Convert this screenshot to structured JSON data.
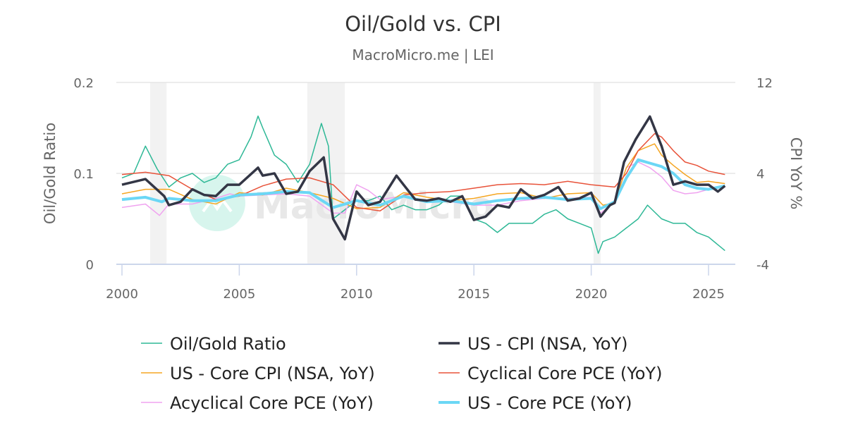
{
  "chart_data": {
    "type": "line",
    "title": "Oil/Gold vs. CPI",
    "subtitle": "MacroMicro.me | LEI",
    "watermark": "MacroMicro",
    "ylabel_left": "Oil/Gold Ratio",
    "ylabel_right": "CPI YoY %",
    "xlim": [
      2000,
      2026
    ],
    "ylim_left": [
      0,
      0.2
    ],
    "ylim_right": [
      -4,
      12
    ],
    "x_ticks": [
      "2000",
      "2005",
      "2010",
      "2015",
      "2020",
      "2025"
    ],
    "y_ticks_left": [
      "0",
      "0.1",
      "0.2"
    ],
    "y_ticks_right": [
      "-4",
      "4",
      "12"
    ],
    "grid": true,
    "legend_position": "bottom",
    "recession_shading": [
      [
        2001.2,
        2001.9
      ],
      [
        2007.9,
        2009.5
      ],
      [
        2020.1,
        2020.4
      ]
    ],
    "series": [
      {
        "name": "Oil/Gold Ratio",
        "axis": "left",
        "color": "#2eb896",
        "width": 1.5,
        "x": [
          2000,
          2000.5,
          2001,
          2001.5,
          2002,
          2002.5,
          2003,
          2003.5,
          2004,
          2004.5,
          2005,
          2005.5,
          2005.8,
          2006,
          2006.5,
          2007,
          2007.5,
          2008,
          2008.5,
          2008.8,
          2009,
          2009.5,
          2010,
          2010.5,
          2011,
          2011.5,
          2012,
          2012.5,
          2013,
          2013.5,
          2014,
          2014.5,
          2015,
          2015.5,
          2016,
          2016.5,
          2017,
          2017.5,
          2018,
          2018.5,
          2019,
          2019.5,
          2020,
          2020.3,
          2020.5,
          2021,
          2021.5,
          2022,
          2022.4,
          2023,
          2023.5,
          2024,
          2024.5,
          2025,
          2025.7
        ],
        "y": [
          0.095,
          0.1,
          0.13,
          0.105,
          0.085,
          0.095,
          0.1,
          0.09,
          0.095,
          0.11,
          0.115,
          0.14,
          0.163,
          0.15,
          0.12,
          0.11,
          0.09,
          0.11,
          0.155,
          0.13,
          0.05,
          0.06,
          0.07,
          0.07,
          0.075,
          0.06,
          0.065,
          0.06,
          0.06,
          0.065,
          0.075,
          0.075,
          0.05,
          0.045,
          0.035,
          0.045,
          0.045,
          0.045,
          0.055,
          0.06,
          0.05,
          0.045,
          0.04,
          0.012,
          0.025,
          0.03,
          0.04,
          0.05,
          0.065,
          0.05,
          0.045,
          0.045,
          0.035,
          0.03,
          0.015
        ]
      },
      {
        "name": "US - CPI (NSA, YoY)",
        "axis": "right",
        "color": "#333645",
        "width": 3.5,
        "x": [
          2000,
          2001,
          2001.8,
          2002,
          2002.5,
          2003,
          2003.5,
          2004,
          2004.5,
          2005,
          2005.8,
          2006,
          2006.5,
          2007,
          2007.5,
          2008,
          2008.6,
          2009,
          2009.5,
          2010,
          2010.5,
          2011,
          2011.7,
          2012,
          2012.5,
          2013,
          2013.5,
          2014,
          2014.5,
          2015,
          2015.5,
          2016,
          2016.5,
          2017,
          2017.5,
          2018,
          2018.6,
          2019,
          2019.5,
          2020,
          2020.4,
          2020.8,
          2021,
          2021.4,
          2021.9,
          2022.5,
          2023,
          2023.5,
          2024,
          2024.5,
          2025,
          2025.4,
          2025.7
        ],
        "y": [
          3.0,
          3.5,
          2.0,
          1.2,
          1.5,
          2.6,
          2.1,
          2.0,
          3.0,
          3.0,
          4.5,
          3.8,
          4.0,
          2.2,
          2.4,
          4.2,
          5.4,
          0.0,
          -1.8,
          2.4,
          1.2,
          1.5,
          3.8,
          3.0,
          1.7,
          1.6,
          1.8,
          1.5,
          2.0,
          -0.1,
          0.2,
          1.2,
          1.0,
          2.6,
          1.8,
          2.1,
          2.8,
          1.6,
          1.8,
          2.3,
          0.2,
          1.2,
          1.4,
          5.0,
          7.0,
          9.0,
          6.4,
          3.0,
          3.3,
          3.0,
          3.0,
          2.4,
          2.9
        ]
      },
      {
        "name": "US - Core CPI (NSA, YoY)",
        "axis": "right",
        "color": "#f5a623",
        "width": 1.5,
        "x": [
          2000,
          2001,
          2002,
          2003,
          2004,
          2005,
          2006,
          2007,
          2008,
          2009,
          2010,
          2011,
          2012,
          2013,
          2014,
          2015,
          2016,
          2017,
          2018,
          2019,
          2020,
          2020.5,
          2021,
          2021.5,
          2022,
          2022.7,
          2023,
          2023.5,
          2024,
          2024.5,
          2025,
          2025.7
        ],
        "y": [
          2.2,
          2.6,
          2.6,
          1.7,
          1.3,
          2.3,
          2.1,
          2.7,
          2.3,
          1.8,
          0.9,
          1.0,
          2.3,
          1.9,
          1.6,
          1.8,
          2.2,
          2.3,
          1.8,
          2.2,
          2.3,
          1.2,
          1.4,
          4.5,
          6.0,
          6.6,
          5.6,
          4.7,
          3.9,
          3.2,
          3.3,
          3.1
        ]
      },
      {
        "name": "Cyclical Core PCE (YoY)",
        "axis": "right",
        "color": "#e8533a",
        "width": 1.5,
        "x": [
          2000,
          2001,
          2002,
          2003,
          2004,
          2005,
          2006,
          2007,
          2008,
          2009,
          2010,
          2011,
          2012,
          2013,
          2014,
          2015,
          2016,
          2017,
          2018,
          2019,
          2020,
          2021,
          2021.5,
          2022,
          2022.7,
          2023,
          2023.5,
          2024,
          2024.5,
          2025,
          2025.7
        ],
        "y": [
          3.9,
          4.1,
          3.8,
          2.6,
          1.7,
          2.0,
          2.9,
          3.5,
          3.6,
          3.0,
          1.0,
          0.7,
          2.1,
          2.3,
          2.4,
          2.7,
          3.0,
          3.1,
          3.0,
          3.3,
          3.0,
          2.8,
          4.0,
          6.0,
          7.5,
          7.2,
          6.0,
          5.0,
          4.7,
          4.2,
          3.9
        ]
      },
      {
        "name": "Acyclical Core PCE (YoY)",
        "axis": "right",
        "color": "#f0a3f0",
        "width": 1.5,
        "x": [
          2000,
          2001,
          2001.6,
          2002,
          2003,
          2004,
          2004.6,
          2005,
          2006,
          2007,
          2008,
          2009,
          2009.5,
          2010,
          2010.5,
          2011,
          2012,
          2013,
          2014,
          2015,
          2016,
          2017,
          2018,
          2019,
          2020,
          2020.4,
          2021,
          2021.5,
          2022,
          2022.5,
          2023,
          2023.5,
          2024,
          2024.5,
          2025,
          2025.7
        ],
        "y": [
          1.0,
          1.3,
          0.3,
          1.3,
          1.3,
          1.8,
          2.2,
          2.0,
          2.1,
          2.2,
          2.0,
          0.5,
          0.5,
          3.0,
          2.5,
          1.7,
          2.0,
          1.5,
          1.5,
          1.2,
          1.2,
          1.6,
          1.8,
          1.8,
          1.9,
          0.5,
          1.5,
          4.5,
          5.0,
          4.5,
          3.7,
          2.5,
          2.2,
          2.3,
          2.6,
          2.8
        ]
      },
      {
        "name": "US - Core PCE (YoY)",
        "axis": "right",
        "color": "#6bd7f5",
        "width": 4,
        "x": [
          2000,
          2001,
          2001.7,
          2002,
          2003,
          2004,
          2005,
          2006,
          2007,
          2008,
          2009,
          2010,
          2011,
          2012,
          2013,
          2014,
          2015,
          2016,
          2017,
          2018,
          2019,
          2020,
          2020.4,
          2021,
          2021.5,
          2022,
          2022.5,
          2023,
          2023.5,
          2024,
          2024.5,
          2025,
          2025.7
        ],
        "y": [
          1.7,
          1.9,
          1.5,
          1.8,
          1.6,
          1.6,
          2.1,
          2.2,
          2.4,
          2.3,
          1.0,
          1.6,
          1.2,
          2.0,
          1.5,
          1.6,
          1.3,
          1.6,
          1.8,
          1.9,
          1.7,
          1.8,
          0.9,
          1.5,
          3.6,
          5.2,
          4.9,
          4.6,
          4.0,
          3.0,
          2.7,
          2.6,
          2.9
        ]
      }
    ]
  }
}
